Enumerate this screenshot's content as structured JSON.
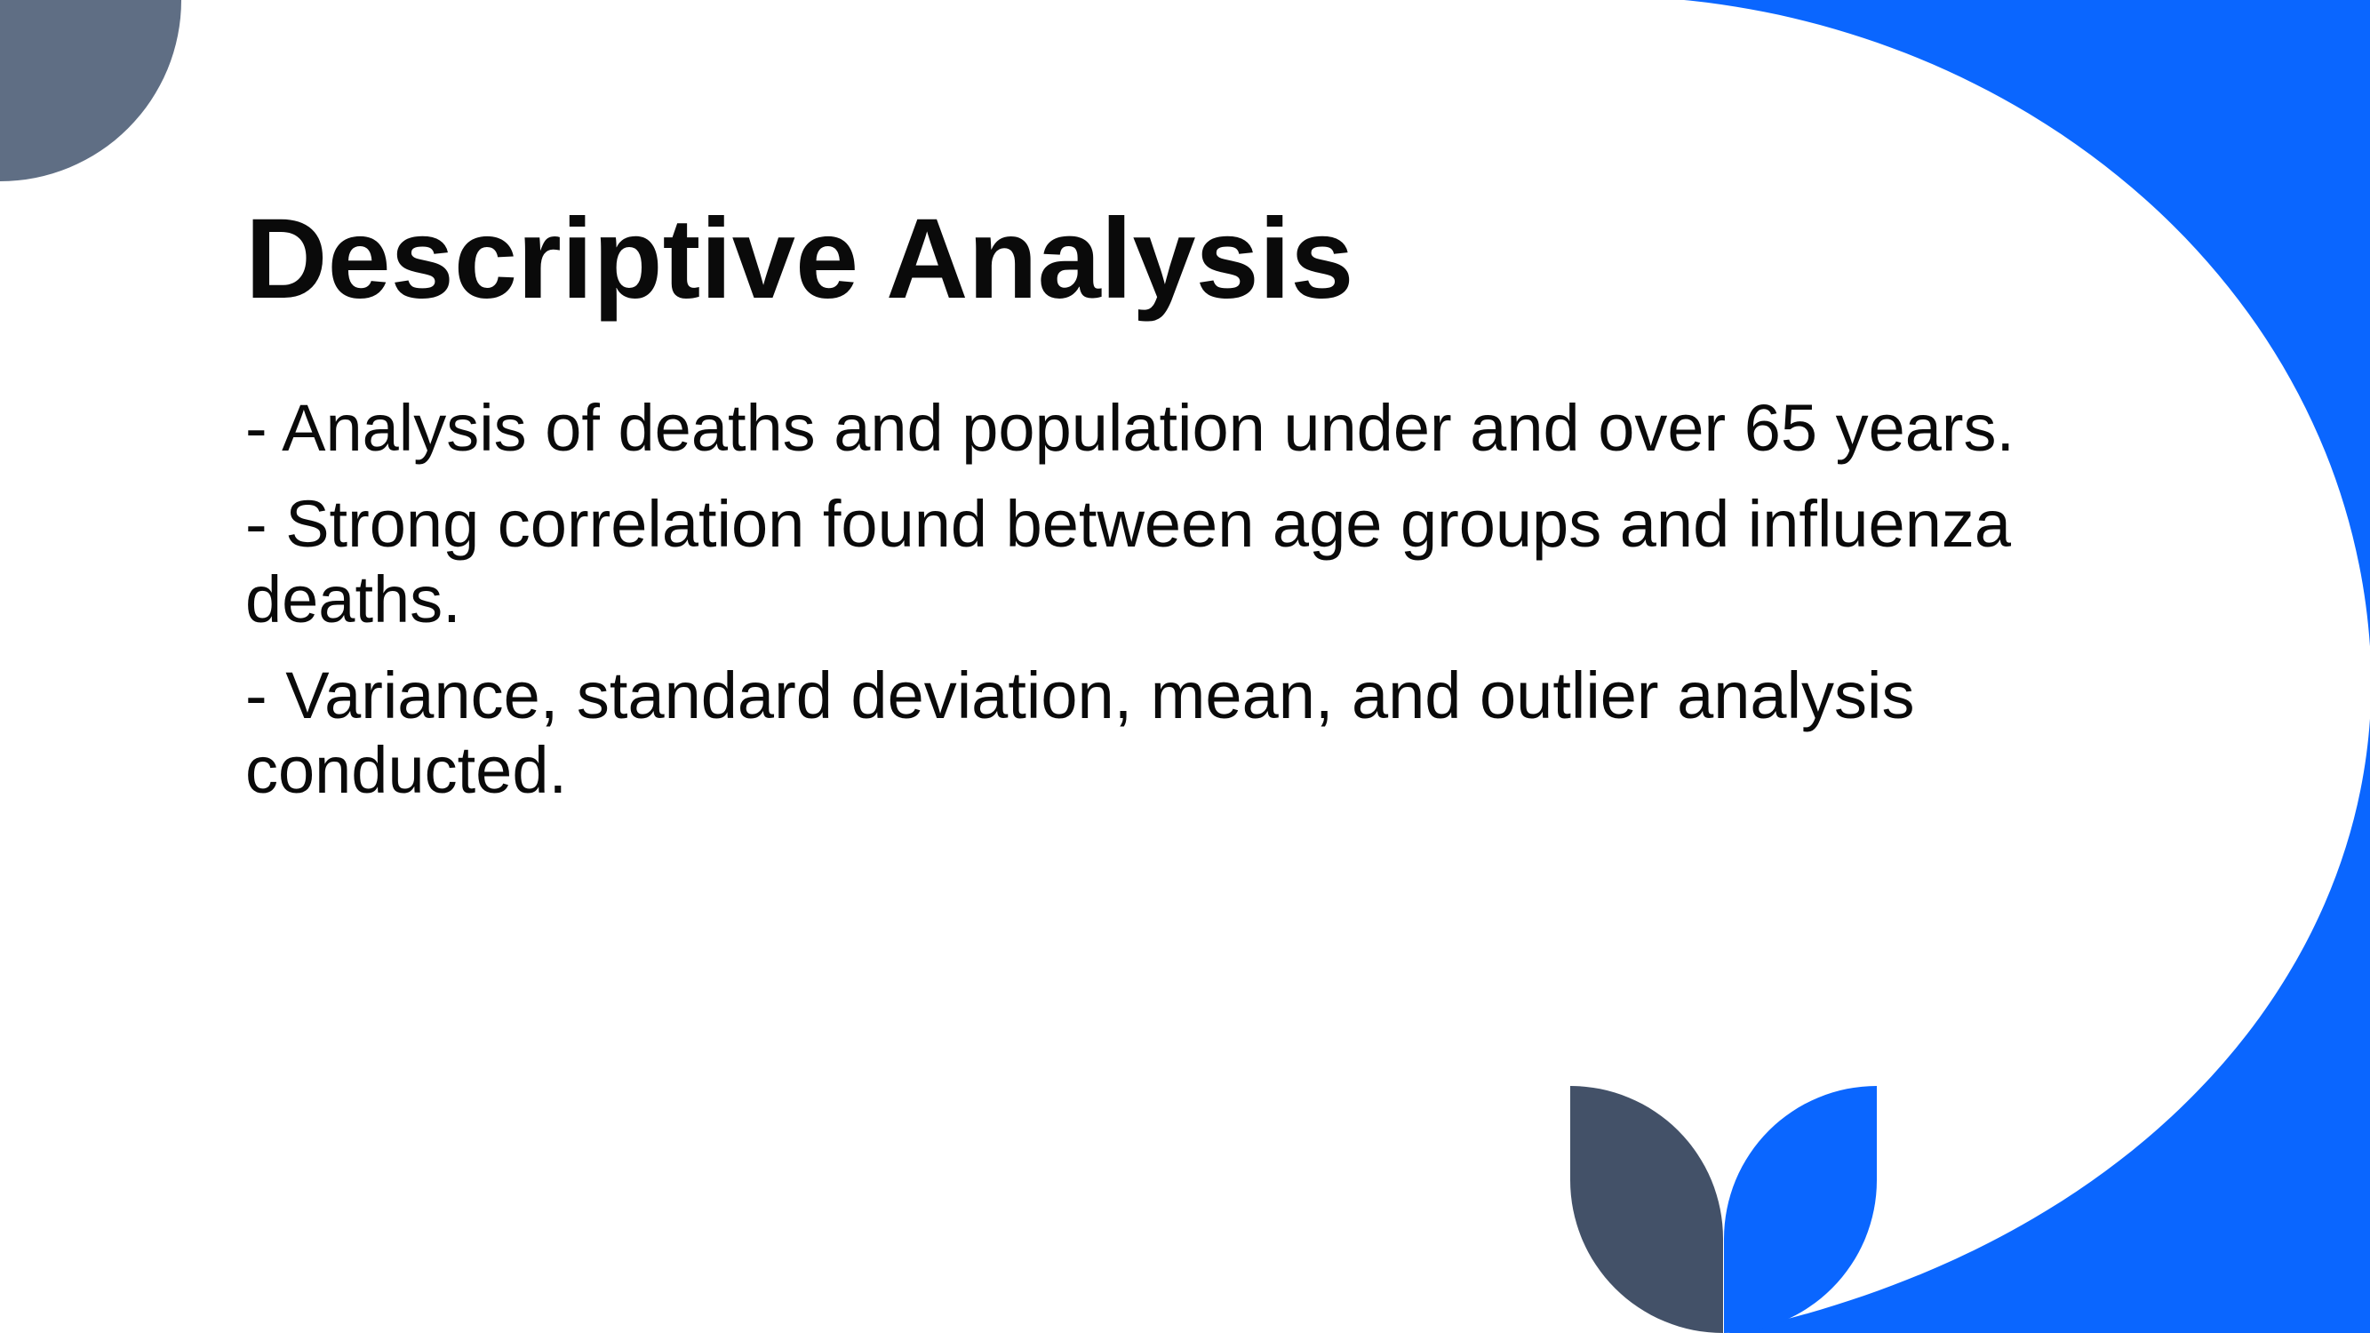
{
  "slide": {
    "title": "Descriptive Analysis",
    "bullets": [
      "- Analysis of deaths and population under and over 65 years.",
      "- Strong correlation found between age groups and influenza deaths.",
      "- Variance, standard deviation, mean, and outlier analysis conducted."
    ]
  },
  "colors": {
    "accent_blue": "#0a66ff",
    "slate": "#5f6e84",
    "dark_slate": "#435168",
    "background": "#ffffff",
    "text": "#0a0a0a"
  }
}
